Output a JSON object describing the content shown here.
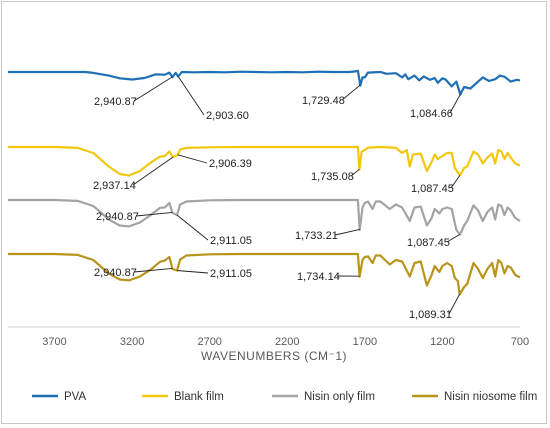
{
  "chart_data": {
    "type": "line",
    "title": "",
    "xlabel": "WAVENUMBERS (CM⁻1)",
    "ylabel": "",
    "x_reversed": true,
    "xlim": [
      4000,
      700
    ],
    "x_ticks": [
      3700,
      3200,
      2700,
      2200,
      1700,
      1200,
      700
    ],
    "x_tick_labels": [
      "3700",
      "3200",
      "2700",
      "2200",
      "1700",
      "1200",
      "700"
    ],
    "y_ticks_shown": false,
    "grid": false,
    "legend_position": "bottom",
    "series": [
      {
        "name": "PVA",
        "color": "#1f6fb4",
        "points": [
          [
            4000,
            0.0
          ],
          [
            3700,
            0.0
          ],
          [
            3500,
            0.0
          ],
          [
            3450,
            -0.3
          ],
          [
            3350,
            -1.2
          ],
          [
            3280,
            -2.1
          ],
          [
            3200,
            -2.5
          ],
          [
            3120,
            -2.0
          ],
          [
            3050,
            -0.8
          ],
          [
            2990,
            -0.9
          ],
          [
            2960,
            -0.2
          ],
          [
            2940,
            -1.7
          ],
          [
            2920,
            -0.3
          ],
          [
            2903,
            -1.5
          ],
          [
            2880,
            0.0
          ],
          [
            2800,
            -0.1
          ],
          [
            2700,
            0.0
          ],
          [
            2600,
            -0.1
          ],
          [
            2500,
            0.1
          ],
          [
            2400,
            0.0
          ],
          [
            2300,
            -0.1
          ],
          [
            2200,
            0.0
          ],
          [
            2100,
            -0.1
          ],
          [
            2000,
            0.1
          ],
          [
            1900,
            0.0
          ],
          [
            1800,
            0.0
          ],
          [
            1760,
            0.2
          ],
          [
            1745,
            0.4
          ],
          [
            1729,
            -4.5
          ],
          [
            1715,
            -1.8
          ],
          [
            1700,
            -1.8
          ],
          [
            1680,
            -0.2
          ],
          [
            1600,
            0.0
          ],
          [
            1560,
            -0.6
          ],
          [
            1500,
            -0.4
          ],
          [
            1460,
            -1.8
          ],
          [
            1440,
            -0.8
          ],
          [
            1420,
            -2.4
          ],
          [
            1380,
            -1.2
          ],
          [
            1350,
            -2.8
          ],
          [
            1320,
            -1.5
          ],
          [
            1280,
            -2.6
          ],
          [
            1250,
            -2.0
          ],
          [
            1230,
            -3.6
          ],
          [
            1200,
            -2.1
          ],
          [
            1180,
            -2.5
          ],
          [
            1140,
            -4.8
          ],
          [
            1110,
            -3.2
          ],
          [
            1085,
            -7.5
          ],
          [
            1060,
            -5.0
          ],
          [
            1020,
            -5.5
          ],
          [
            970,
            -3.2
          ],
          [
            940,
            -1.8
          ],
          [
            900,
            -3.0
          ],
          [
            860,
            -2.4
          ],
          [
            830,
            -1.2
          ],
          [
            800,
            -1.6
          ],
          [
            760,
            -3.2
          ],
          [
            720,
            -2.6
          ],
          [
            700,
            -2.8
          ]
        ]
      },
      {
        "name": "Blank film",
        "color": "#f2c70d",
        "points": [
          [
            4000,
            0.0
          ],
          [
            3700,
            0.0
          ],
          [
            3550,
            -0.3
          ],
          [
            3450,
            -2.0
          ],
          [
            3350,
            -6.5
          ],
          [
            3280,
            -9.0
          ],
          [
            3220,
            -9.5
          ],
          [
            3150,
            -8.0
          ],
          [
            3080,
            -5.2
          ],
          [
            3020,
            -3.2
          ],
          [
            2990,
            -3.0
          ],
          [
            2960,
            -1.5
          ],
          [
            2937,
            -3.4
          ],
          [
            2906,
            -2.6
          ],
          [
            2890,
            -0.8
          ],
          [
            2850,
            -0.3
          ],
          [
            2700,
            -0.1
          ],
          [
            2500,
            0.0
          ],
          [
            2300,
            0.0
          ],
          [
            2100,
            0.0
          ],
          [
            1900,
            0.0
          ],
          [
            1780,
            0.0
          ],
          [
            1745,
            0.0
          ],
          [
            1735,
            -7.5
          ],
          [
            1720,
            -1.5
          ],
          [
            1700,
            -1.0
          ],
          [
            1680,
            -0.2
          ],
          [
            1600,
            0.0
          ],
          [
            1500,
            -0.3
          ],
          [
            1460,
            -2.0
          ],
          [
            1430,
            -1.0
          ],
          [
            1410,
            -6.5
          ],
          [
            1390,
            -2.5
          ],
          [
            1340,
            -2.2
          ],
          [
            1300,
            -8.0
          ],
          [
            1270,
            -5.0
          ],
          [
            1250,
            -2.5
          ],
          [
            1230,
            -4.0
          ],
          [
            1200,
            -3.0
          ],
          [
            1170,
            -2.0
          ],
          [
            1140,
            -2.0
          ],
          [
            1120,
            -7.0
          ],
          [
            1100,
            -8.5
          ],
          [
            1087,
            -9.5
          ],
          [
            1060,
            -7.0
          ],
          [
            1040,
            -6.5
          ],
          [
            1000,
            -1.5
          ],
          [
            970,
            -2.5
          ],
          [
            940,
            -5.5
          ],
          [
            910,
            -3.5
          ],
          [
            880,
            -2.2
          ],
          [
            860,
            -5.5
          ],
          [
            840,
            -1.0
          ],
          [
            820,
            -1.5
          ],
          [
            800,
            -4.0
          ],
          [
            780,
            -2.0
          ],
          [
            760,
            -3.5
          ],
          [
            730,
            -5.5
          ],
          [
            700,
            -6.2
          ]
        ]
      },
      {
        "name": "Nisin only film",
        "color": "#a3a3a3",
        "points": [
          [
            4000,
            0.0
          ],
          [
            3700,
            0.0
          ],
          [
            3550,
            -0.3
          ],
          [
            3450,
            -2.0
          ],
          [
            3350,
            -6.5
          ],
          [
            3280,
            -8.5
          ],
          [
            3220,
            -8.8
          ],
          [
            3150,
            -7.5
          ],
          [
            3080,
            -5.0
          ],
          [
            3020,
            -2.6
          ],
          [
            2990,
            -2.5
          ],
          [
            2960,
            -1.0
          ],
          [
            2940,
            -4.3
          ],
          [
            2911,
            -5.0
          ],
          [
            2890,
            -1.5
          ],
          [
            2850,
            -0.5
          ],
          [
            2700,
            -0.1
          ],
          [
            2500,
            0.0
          ],
          [
            2300,
            0.0
          ],
          [
            2100,
            0.0
          ],
          [
            1900,
            0.0
          ],
          [
            1780,
            0.0
          ],
          [
            1745,
            0.0
          ],
          [
            1733,
            -10.0
          ],
          [
            1715,
            -2.5
          ],
          [
            1700,
            -1.0
          ],
          [
            1680,
            -0.5
          ],
          [
            1650,
            -3.0
          ],
          [
            1630,
            -0.5
          ],
          [
            1600,
            -0.5
          ],
          [
            1540,
            -3.0
          ],
          [
            1500,
            -1.5
          ],
          [
            1460,
            -2.5
          ],
          [
            1410,
            -7.0
          ],
          [
            1380,
            -2.5
          ],
          [
            1340,
            -2.2
          ],
          [
            1300,
            -8.5
          ],
          [
            1270,
            -6.0
          ],
          [
            1250,
            -3.0
          ],
          [
            1220,
            -4.5
          ],
          [
            1200,
            -3.0
          ],
          [
            1170,
            -2.5
          ],
          [
            1140,
            -3.0
          ],
          [
            1110,
            -10.0
          ],
          [
            1087,
            -11.5
          ],
          [
            1060,
            -8.5
          ],
          [
            1040,
            -7.0
          ],
          [
            1000,
            -1.8
          ],
          [
            970,
            -3.5
          ],
          [
            940,
            -7.0
          ],
          [
            910,
            -4.0
          ],
          [
            880,
            -2.5
          ],
          [
            860,
            -6.5
          ],
          [
            840,
            -1.5
          ],
          [
            820,
            -2.0
          ],
          [
            800,
            -5.0
          ],
          [
            780,
            -2.5
          ],
          [
            760,
            -3.5
          ],
          [
            730,
            -6.0
          ],
          [
            700,
            -7.0
          ]
        ]
      },
      {
        "name": "Nisin niosome film",
        "color": "#b8941a",
        "points": [
          [
            4000,
            0.0
          ],
          [
            3700,
            0.0
          ],
          [
            3550,
            -0.3
          ],
          [
            3450,
            -2.0
          ],
          [
            3350,
            -6.5
          ],
          [
            3280,
            -8.5
          ],
          [
            3220,
            -8.8
          ],
          [
            3150,
            -7.5
          ],
          [
            3080,
            -5.2
          ],
          [
            3020,
            -2.6
          ],
          [
            2990,
            -2.2
          ],
          [
            2960,
            -1.0
          ],
          [
            2940,
            -5.0
          ],
          [
            2911,
            -5.5
          ],
          [
            2890,
            -1.8
          ],
          [
            2850,
            -0.5
          ],
          [
            2700,
            -0.1
          ],
          [
            2500,
            0.0
          ],
          [
            2300,
            0.0
          ],
          [
            2100,
            0.0
          ],
          [
            1900,
            0.0
          ],
          [
            1780,
            0.0
          ],
          [
            1745,
            0.0
          ],
          [
            1734,
            -7.5
          ],
          [
            1715,
            -2.0
          ],
          [
            1700,
            -1.0
          ],
          [
            1680,
            -0.8
          ],
          [
            1650,
            -3.0
          ],
          [
            1630,
            -0.5
          ],
          [
            1600,
            -0.5
          ],
          [
            1540,
            -3.5
          ],
          [
            1500,
            -2.0
          ],
          [
            1460,
            -2.5
          ],
          [
            1410,
            -7.5
          ],
          [
            1380,
            -3.0
          ],
          [
            1340,
            -2.5
          ],
          [
            1300,
            -10.5
          ],
          [
            1270,
            -7.0
          ],
          [
            1250,
            -4.0
          ],
          [
            1220,
            -6.0
          ],
          [
            1200,
            -4.0
          ],
          [
            1170,
            -3.0
          ],
          [
            1140,
            -4.0
          ],
          [
            1120,
            -8.0
          ],
          [
            1100,
            -9.0
          ],
          [
            1089,
            -13.5
          ],
          [
            1060,
            -11.0
          ],
          [
            1040,
            -10.0
          ],
          [
            1000,
            -3.0
          ],
          [
            970,
            -5.0
          ],
          [
            940,
            -8.0
          ],
          [
            910,
            -5.0
          ],
          [
            880,
            -3.0
          ],
          [
            860,
            -7.5
          ],
          [
            840,
            -2.0
          ],
          [
            820,
            -3.0
          ],
          [
            800,
            -6.5
          ],
          [
            780,
            -4.0
          ],
          [
            760,
            -4.5
          ],
          [
            730,
            -7.0
          ],
          [
            700,
            -7.8
          ]
        ]
      }
    ],
    "annotations": [
      {
        "series": "PVA",
        "text": "2,940.87",
        "x": 2940.87
      },
      {
        "series": "PVA",
        "text": "2,903.60",
        "x": 2903.6
      },
      {
        "series": "PVA",
        "text": "1,729.48",
        "x": 1729.48
      },
      {
        "series": "PVA",
        "text": "1,084.66",
        "x": 1084.66
      },
      {
        "series": "Blank film",
        "text": "2,937.14",
        "x": 2937.14
      },
      {
        "series": "Blank film",
        "text": "2,906.39",
        "x": 2906.39
      },
      {
        "series": "Blank film",
        "text": "1,735.08",
        "x": 1735.08
      },
      {
        "series": "Blank film",
        "text": "1,087.45",
        "x": 1087.45
      },
      {
        "series": "Nisin only film",
        "text": "2,940.87",
        "x": 2940.87
      },
      {
        "series": "Nisin only film",
        "text": "2,911.05",
        "x": 2911.05
      },
      {
        "series": "Nisin only film",
        "text": "1,733.21",
        "x": 1733.21
      },
      {
        "series": "Nisin only film",
        "text": "1,087.45",
        "x": 1087.45
      },
      {
        "series": "Nisin niosome film",
        "text": "2,940.87",
        "x": 2940.87
      },
      {
        "series": "Nisin niosome film",
        "text": "2,911.05",
        "x": 2911.05
      },
      {
        "series": "Nisin niosome film",
        "text": "1,734.14",
        "x": 1734.14
      },
      {
        "series": "Nisin niosome film",
        "text": "1,089.31",
        "x": 1089.31
      }
    ]
  }
}
